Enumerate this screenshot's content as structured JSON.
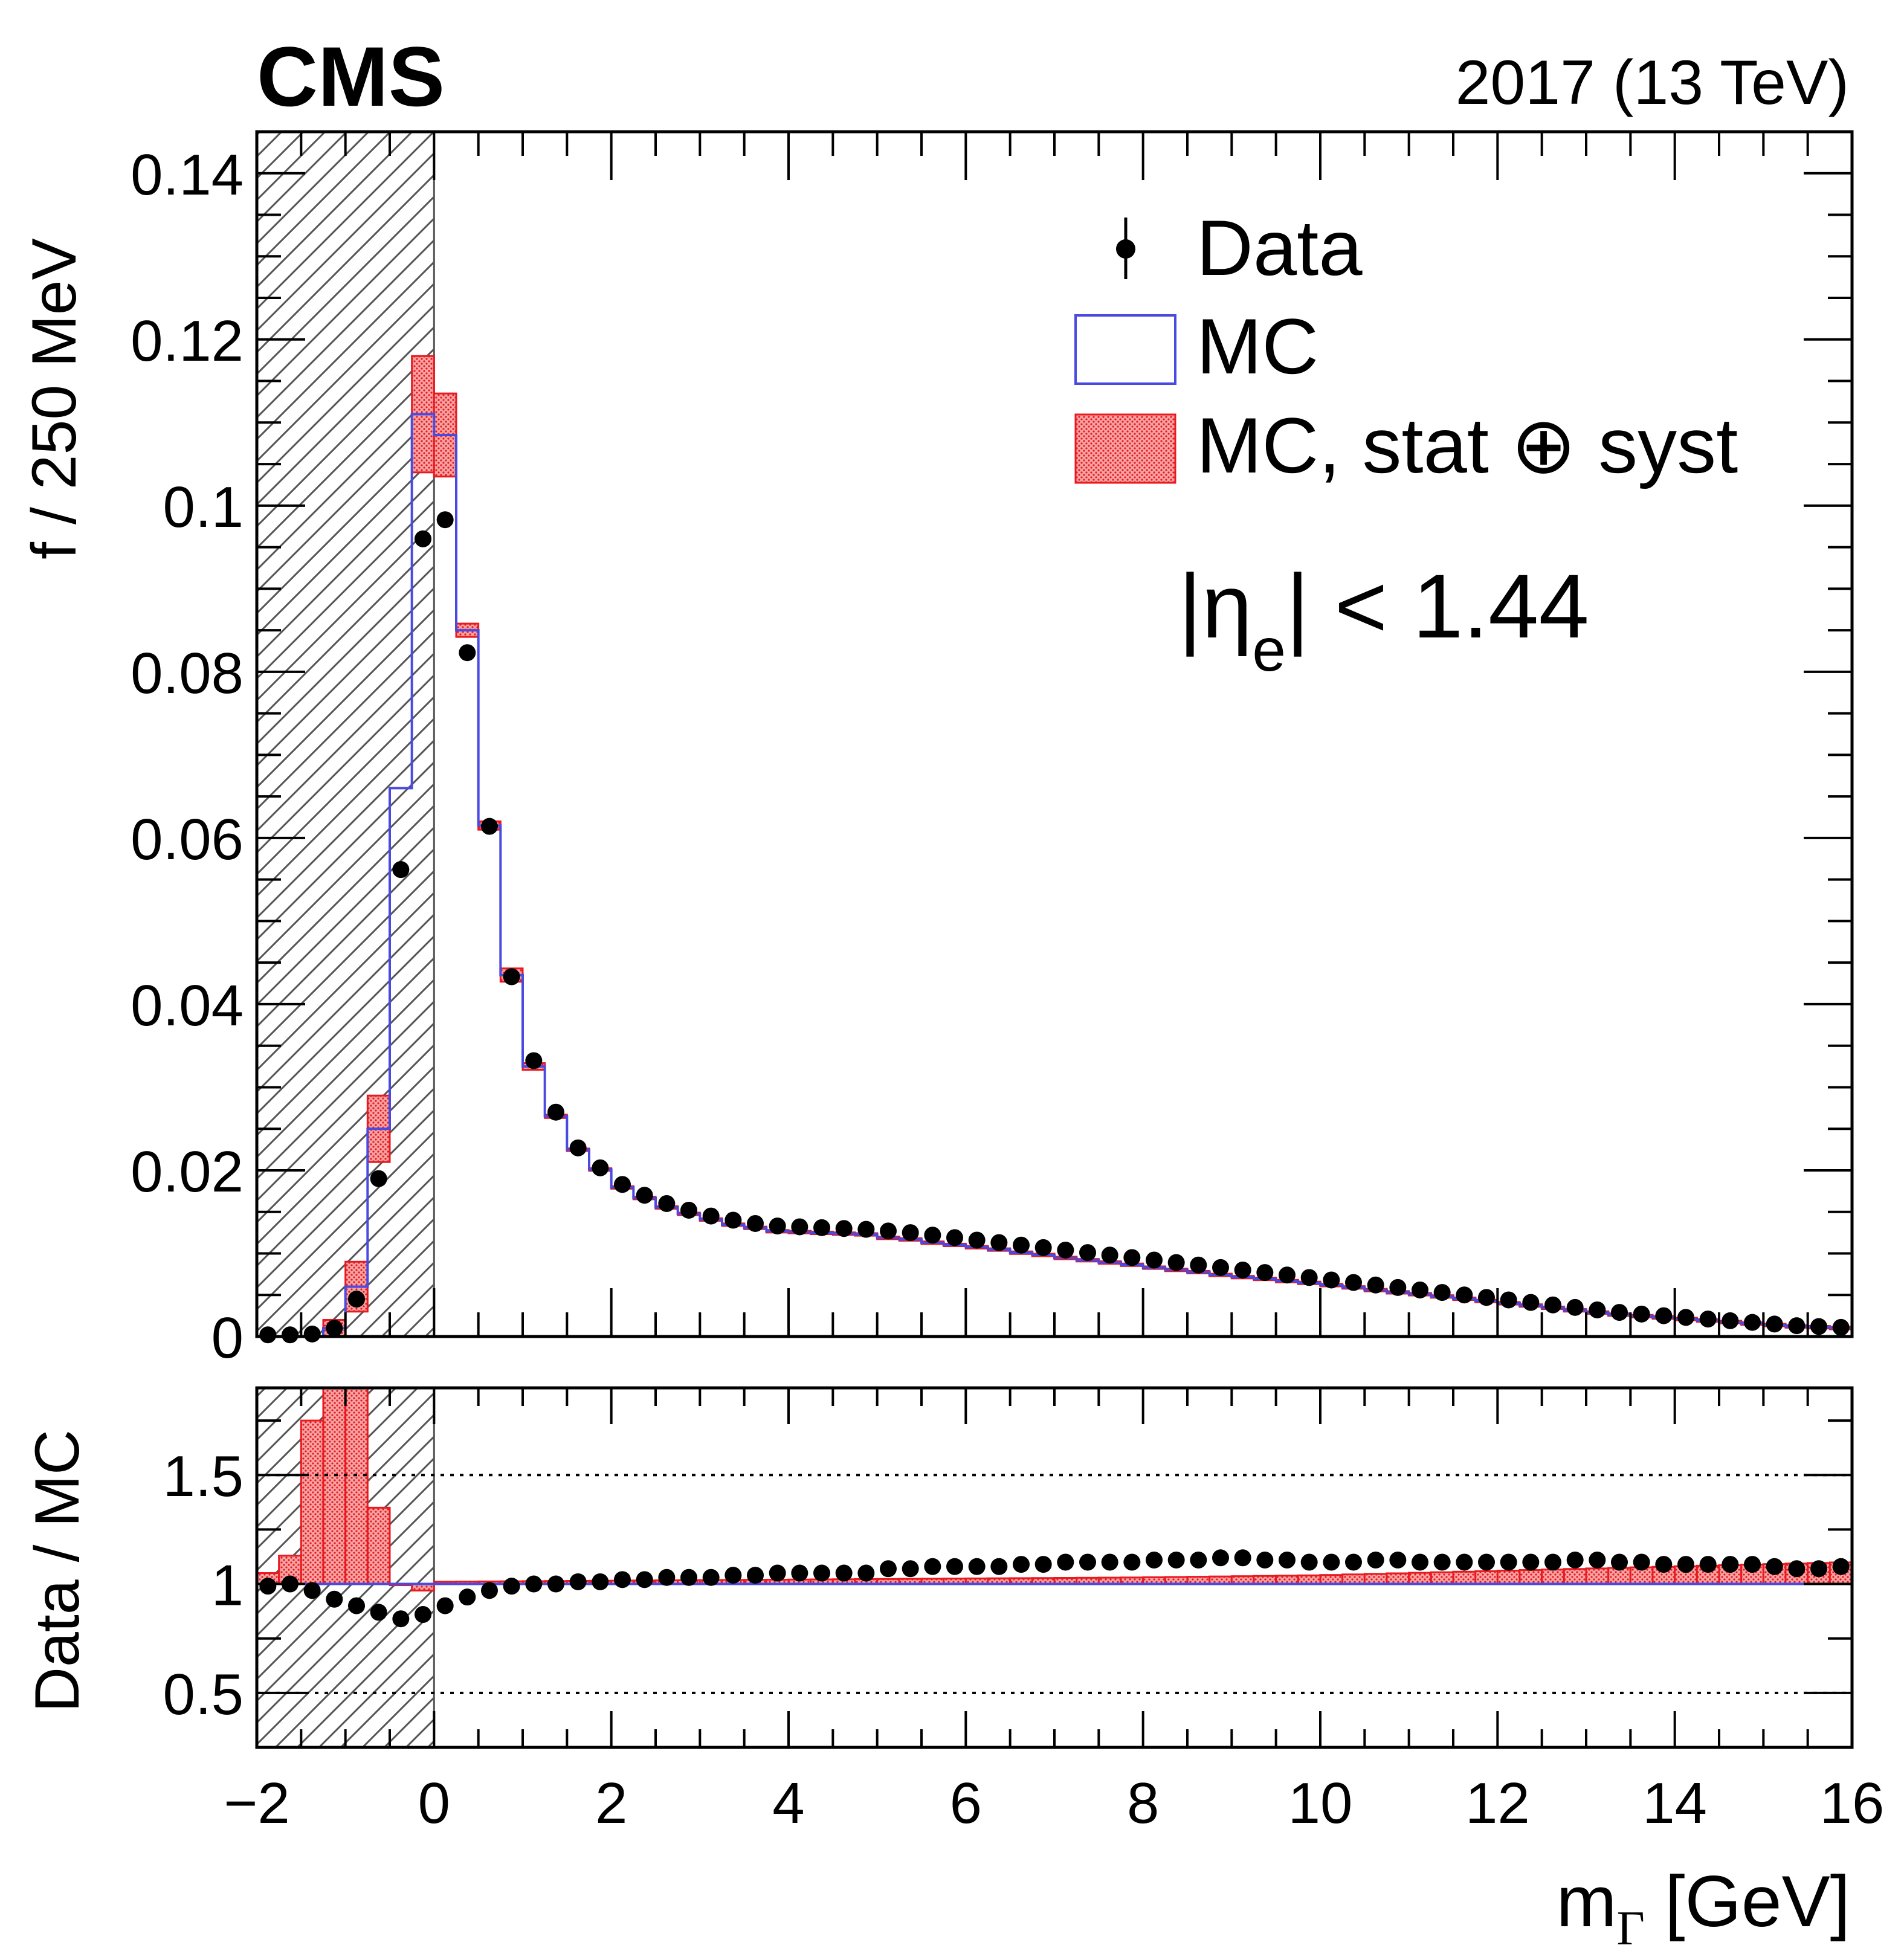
{
  "header": {
    "experiment": "CMS",
    "run_info": "2017 (13 TeV)"
  },
  "colors": {
    "mc_line": "#4a4ae0",
    "uncertainty": "#e8191f",
    "data": "#000000",
    "hatch": "#555555"
  },
  "chart_data": [
    {
      "panel": "main",
      "type": "line",
      "xlabel_main": "m",
      "xlabel_sub": "Γ",
      "xlabel_unit": " [GeV]",
      "ylabel": "f / 250 MeV",
      "xlim": [
        -2,
        16
      ],
      "ylim": [
        0,
        0.145
      ],
      "yticks": [
        0,
        0.02,
        0.04,
        0.06,
        0.08,
        0.1,
        0.12,
        0.14
      ],
      "ytick_labels": [
        "0",
        "0.02",
        "0.04",
        "0.06",
        "0.08",
        "0.1",
        "0.12",
        "0.14"
      ],
      "hatched_region": [
        -2,
        0
      ],
      "annotation": {
        "prefix": "|η",
        "sub": "e",
        "suffix": "| < 1.44"
      },
      "legend": [
        {
          "label": "Data",
          "marker": "point"
        },
        {
          "label": "MC",
          "marker": "line-box"
        },
        {
          "label": "MC, stat ⊕ syst",
          "marker": "filled-box"
        }
      ],
      "bin_edges": [
        -2.0,
        -1.75,
        -1.5,
        -1.25,
        -1.0,
        -0.75,
        -0.5,
        -0.25,
        0.0,
        0.25,
        0.5,
        0.75,
        1.0,
        1.25,
        1.5
      ],
      "mc_values": [
        0.0,
        0.0,
        0.0,
        0.001,
        0.006,
        0.025,
        0.066,
        0.111,
        0.1085,
        0.085,
        0.0615,
        0.0435,
        0.0325,
        0.0265
      ],
      "mc_err": [
        0.0,
        0.0,
        0.0,
        0.001,
        0.003,
        0.004,
        0.0,
        0.007,
        0.005,
        0.0008,
        0.0005,
        0.0008,
        0.0004,
        0.0002
      ],
      "tail_mc_start": 0.023,
      "series": [
        {
          "name": "Data",
          "x": [
            -1.875,
            -1.625,
            -1.375,
            -1.125,
            -0.875,
            -0.625,
            -0.375,
            -0.125,
            0.125,
            0.375,
            0.625,
            0.875,
            1.125,
            1.375,
            1.625,
            1.875,
            2.125,
            2.375,
            2.625,
            2.875,
            3.125,
            3.375,
            3.625,
            3.875,
            4.125,
            4.375,
            4.625,
            4.875,
            5.125,
            5.375,
            5.625,
            5.875,
            6.125,
            6.375,
            6.625,
            6.875,
            7.125,
            7.375,
            7.625,
            7.875,
            8.125,
            8.375,
            8.625,
            8.875,
            9.125,
            9.375,
            9.625,
            9.875,
            10.125,
            10.375,
            10.625,
            10.875,
            11.125,
            11.375,
            11.625,
            11.875,
            12.125,
            12.375,
            12.625,
            12.875,
            13.125,
            13.375,
            13.625,
            13.875,
            14.125,
            14.375,
            14.625,
            14.875,
            15.125,
            15.375,
            15.625,
            15.875
          ],
          "values": [
            0.0002,
            0.0002,
            0.0003,
            0.001,
            0.0045,
            0.019,
            0.0562,
            0.096,
            0.0983,
            0.0823,
            0.0614,
            0.0433,
            0.0332,
            0.027,
            0.0227,
            0.0203,
            0.0183,
            0.017,
            0.016,
            0.0152,
            0.0145,
            0.014,
            0.0136,
            0.0133,
            0.0132,
            0.0131,
            0.013,
            0.0129,
            0.0127,
            0.0125,
            0.0122,
            0.0119,
            0.0116,
            0.0113,
            0.011,
            0.0107,
            0.0104,
            0.0101,
            0.0098,
            0.0095,
            0.0092,
            0.0089,
            0.0086,
            0.0083,
            0.008,
            0.0077,
            0.0074,
            0.0071,
            0.0068,
            0.0065,
            0.0062,
            0.0059,
            0.0056,
            0.0053,
            0.005,
            0.0047,
            0.0044,
            0.0041,
            0.0038,
            0.0035,
            0.0032,
            0.0029,
            0.0027,
            0.0025,
            0.0023,
            0.0021,
            0.0019,
            0.0017,
            0.0015,
            0.0013,
            0.0012,
            0.0011
          ]
        }
      ]
    },
    {
      "panel": "ratio",
      "type": "scatter",
      "ylabel": "Data / MC",
      "xlim": [
        -2,
        16
      ],
      "ylim": [
        0.25,
        1.9
      ],
      "yticks": [
        0.5,
        1,
        1.5
      ],
      "ytick_labels": [
        "0.5",
        "1",
        "1.5"
      ],
      "xticks": [
        -2,
        0,
        2,
        4,
        6,
        8,
        10,
        12,
        14,
        16
      ],
      "xtick_labels": [
        "−2",
        "0",
        "2",
        "4",
        "6",
        "8",
        "10",
        "12",
        "14",
        "16"
      ],
      "reference_lines": [
        0.5,
        1.5
      ],
      "uncertainty_bands": {
        "bin_edges": [
          -2.0,
          -1.75,
          -1.5,
          -1.25,
          -1.0,
          -0.75,
          -0.5,
          -0.25,
          0.0
        ],
        "upper": [
          1.05,
          1.13,
          1.75,
          1.95,
          1.9,
          1.35,
          1.0,
          1.0
        ],
        "lower": [
          1.0,
          1.0,
          1.0,
          1.0,
          1.0,
          1.0,
          1.0,
          0.97
        ]
      },
      "tail_band_upper": [
        1.01,
        1.02,
        1.03,
        1.04,
        1.06,
        1.08,
        1.1
      ],
      "tail_band_x": [
        0,
        4,
        8,
        10,
        12,
        14,
        16
      ],
      "series": [
        {
          "name": "Data / MC",
          "x": [
            -1.875,
            -1.625,
            -1.375,
            -1.125,
            -0.875,
            -0.625,
            -0.375,
            -0.125,
            0.125,
            0.375,
            0.625,
            0.875,
            1.125,
            1.375,
            1.625,
            1.875,
            2.125,
            2.375,
            2.625,
            2.875,
            3.125,
            3.375,
            3.625,
            3.875,
            4.125,
            4.375,
            4.625,
            4.875,
            5.125,
            5.375,
            5.625,
            5.875,
            6.125,
            6.375,
            6.625,
            6.875,
            7.125,
            7.375,
            7.625,
            7.875,
            8.125,
            8.375,
            8.625,
            8.875,
            9.125,
            9.375,
            9.625,
            9.875,
            10.125,
            10.375,
            10.625,
            10.875,
            11.125,
            11.375,
            11.625,
            11.875,
            12.125,
            12.375,
            12.625,
            12.875,
            13.125,
            13.375,
            13.625,
            13.875,
            14.125,
            14.375,
            14.625,
            14.875,
            15.125,
            15.375,
            15.625,
            15.875
          ],
          "values": [
            0.99,
            1.0,
            0.97,
            0.93,
            0.9,
            0.87,
            0.84,
            0.86,
            0.9,
            0.94,
            0.97,
            0.99,
            1.0,
            1.0,
            1.01,
            1.01,
            1.02,
            1.02,
            1.03,
            1.03,
            1.03,
            1.04,
            1.04,
            1.05,
            1.05,
            1.05,
            1.05,
            1.05,
            1.07,
            1.07,
            1.08,
            1.08,
            1.08,
            1.08,
            1.09,
            1.09,
            1.1,
            1.1,
            1.1,
            1.1,
            1.11,
            1.11,
            1.11,
            1.12,
            1.12,
            1.11,
            1.11,
            1.1,
            1.1,
            1.1,
            1.11,
            1.11,
            1.1,
            1.1,
            1.1,
            1.1,
            1.1,
            1.1,
            1.1,
            1.11,
            1.11,
            1.1,
            1.1,
            1.09,
            1.09,
            1.09,
            1.09,
            1.09,
            1.08,
            1.07,
            1.07,
            1.08
          ]
        }
      ]
    }
  ]
}
